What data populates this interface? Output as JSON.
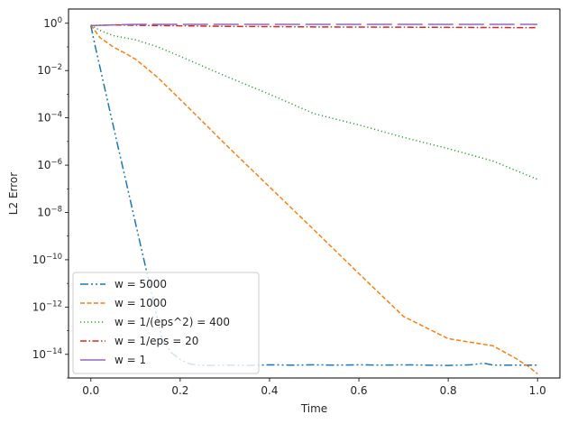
{
  "chart_data": {
    "type": "line",
    "title": "",
    "xlabel": "Time",
    "ylabel": "L2 Error",
    "xlim": [
      -0.05,
      1.05
    ],
    "ylim": [
      1e-15,
      4
    ],
    "yscale": "log",
    "x_ticks": [
      {
        "value": 0.0,
        "label": "0.0"
      },
      {
        "value": 0.2,
        "label": "0.2"
      },
      {
        "value": 0.4,
        "label": "0.4"
      },
      {
        "value": 0.6,
        "label": "0.6"
      },
      {
        "value": 0.8,
        "label": "0.8"
      },
      {
        "value": 1.0,
        "label": "1.0"
      }
    ],
    "y_ticks": [
      {
        "value": 1.0,
        "base": "10",
        "exp": "0"
      },
      {
        "value": 0.01,
        "base": "10",
        "exp": "−2"
      },
      {
        "value": 0.0001,
        "base": "10",
        "exp": "−4"
      },
      {
        "value": 1e-06,
        "base": "10",
        "exp": "−6"
      },
      {
        "value": 1e-08,
        "base": "10",
        "exp": "−8"
      },
      {
        "value": 1e-10,
        "base": "10",
        "exp": "−10"
      },
      {
        "value": 1e-12,
        "base": "10",
        "exp": "−12"
      },
      {
        "value": 1e-14,
        "base": "10",
        "exp": "−14"
      }
    ],
    "grid": false,
    "legend_position": "lower-left",
    "series": [
      {
        "name": "w = 5000",
        "color": "#1f77b4",
        "dash": "9,3,2,3,2,3",
        "x": [
          0.0,
          0.01,
          0.02,
          0.04,
          0.06,
          0.08,
          0.1,
          0.12,
          0.14,
          0.16,
          0.18,
          0.2,
          0.22,
          0.24,
          0.26,
          0.3,
          0.35,
          0.4,
          0.45,
          0.5,
          0.55,
          0.6,
          0.65,
          0.7,
          0.75,
          0.8,
          0.85,
          0.88,
          0.9,
          0.95,
          1.0
        ],
        "y": [
          0.8,
          0.1,
          0.015,
          0.00032,
          7e-06,
          1.6e-07,
          3.5e-09,
          8e-11,
          1.8e-12,
          4e-14,
          1.2e-14,
          6e-15,
          4e-15,
          3.5e-15,
          3.4e-15,
          3.5e-15,
          3.4e-15,
          3.6e-15,
          3.5e-15,
          3.6e-15,
          3.5e-15,
          3.6e-15,
          3.5e-15,
          3.6e-15,
          3.5e-15,
          3.4e-15,
          3.6e-15,
          4.2e-15,
          3.5e-15,
          3.5e-15,
          3.5e-15
        ]
      },
      {
        "name": "w = 1000",
        "color": "#ff7f0e",
        "dash": "5,2.5",
        "x": [
          0.0,
          0.02,
          0.05,
          0.08,
          0.1,
          0.12,
          0.15,
          0.2,
          0.25,
          0.3,
          0.4,
          0.5,
          0.6,
          0.7,
          0.8,
          0.9,
          0.95,
          0.98,
          1.0
        ],
        "y": [
          0.85,
          0.25,
          0.1,
          0.05,
          0.03,
          0.015,
          0.005,
          0.0006,
          7e-05,
          8e-06,
          1.2e-07,
          1.8e-09,
          2.6e-11,
          4e-13,
          4.6e-14,
          2.3e-14,
          7e-15,
          3e-15,
          1.5e-15
        ]
      },
      {
        "name": "w = 1/(eps^2) = 400",
        "color": "#2ca02c",
        "dash": "1.2,2.8",
        "x": [
          0.0,
          0.02,
          0.05,
          0.1,
          0.15,
          0.2,
          0.3,
          0.4,
          0.5,
          0.6,
          0.7,
          0.8,
          0.9,
          1.0
        ],
        "y": [
          0.85,
          0.5,
          0.3,
          0.2,
          0.1,
          0.04,
          0.006,
          0.001,
          0.00015,
          5e-05,
          1.5e-05,
          5e-06,
          1.5e-06,
          2.5e-07
        ]
      },
      {
        "name": "w = 1/eps = 20",
        "color": "#d62728",
        "dash": "7,2.5,1.5,2.5",
        "x": [
          0.0,
          0.05,
          0.1,
          0.2,
          0.3,
          0.4,
          0.5,
          0.6,
          0.7,
          0.8,
          0.9,
          1.0
        ],
        "y": [
          0.8,
          0.85,
          0.82,
          0.78,
          0.74,
          0.72,
          0.7,
          0.69,
          0.68,
          0.67,
          0.66,
          0.65
        ]
      },
      {
        "name": "w = 1",
        "color": "#9467bd",
        "dash": "28,6",
        "x": [
          0.0,
          0.05,
          0.1,
          0.2,
          0.3,
          0.4,
          0.5,
          0.6,
          0.7,
          0.8,
          0.9,
          1.0
        ],
        "y": [
          0.8,
          0.85,
          0.9,
          0.9,
          0.9,
          0.9,
          0.9,
          0.9,
          0.9,
          0.9,
          0.9,
          0.9
        ]
      }
    ]
  }
}
